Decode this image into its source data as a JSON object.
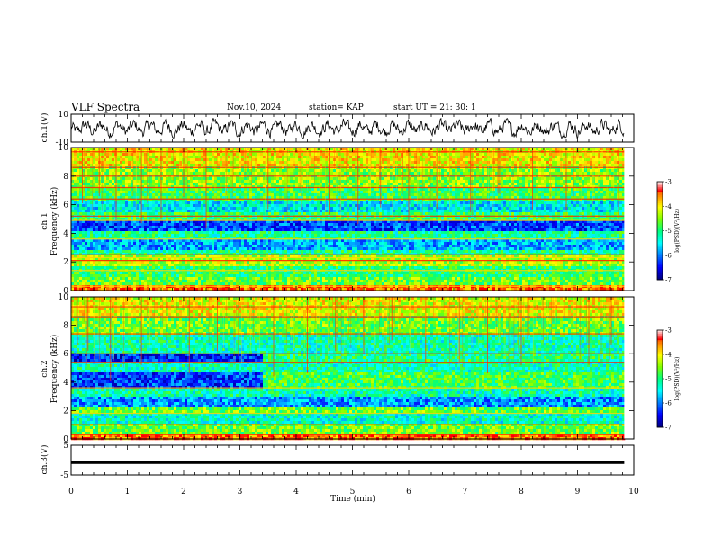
{
  "header": {
    "title": "VLF Spectra",
    "date": "Nov.10, 2024",
    "station": "station= KAP",
    "start": "start  UT =   21: 30: 1"
  },
  "chart_data": [
    {
      "type": "line",
      "name": "ch1-waveform",
      "ylabel": "ch.1(V)",
      "ylim": [
        -10,
        10
      ],
      "yticks": [
        "10",
        "-10"
      ],
      "xlim": [
        0,
        10
      ],
      "data_end_min": 9.83,
      "description_trace": "noisy waveform around 0 V with amplitude about ±6 V",
      "color": "#000000"
    },
    {
      "type": "heatmap",
      "name": "ch1-spectrogram",
      "ylabel_line1": "ch.1",
      "ylabel_line2": "Frequency (kHz)",
      "ylim": [
        0,
        10
      ],
      "yticks": [
        "0",
        "2",
        "4",
        "6",
        "8",
        "10"
      ],
      "xlim": [
        0,
        10
      ],
      "data_end_min": 9.83,
      "bands": [
        {
          "f0": 0.0,
          "f1": 0.3,
          "level": -3.4
        },
        {
          "f0": 0.3,
          "f1": 1.0,
          "level": -4.6
        },
        {
          "f0": 1.0,
          "f1": 1.7,
          "level": -4.9
        },
        {
          "f0": 1.7,
          "f1": 2.4,
          "level": -4.3
        },
        {
          "f0": 2.4,
          "f1": 2.9,
          "level": -5.1
        },
        {
          "f0": 2.9,
          "f1": 3.6,
          "level": -5.8
        },
        {
          "f0": 3.6,
          "f1": 4.2,
          "level": -5.1
        },
        {
          "f0": 4.2,
          "f1": 4.9,
          "level": -6.2
        },
        {
          "f0": 4.9,
          "f1": 5.5,
          "level": -4.9
        },
        {
          "f0": 5.5,
          "f1": 6.3,
          "level": -5.5
        },
        {
          "f0": 6.3,
          "f1": 7.2,
          "level": -4.8
        },
        {
          "f0": 7.2,
          "f1": 8.6,
          "level": -4.5
        },
        {
          "f0": 8.6,
          "f1": 10.0,
          "level": -4.0
        }
      ],
      "lines_khz": [
        0.3,
        1.4,
        2.1,
        2.3,
        2.5,
        3.6,
        4.9,
        5.2,
        6.4,
        7.2,
        8.0,
        8.6,
        9.7
      ],
      "spikes_min": [
        0.2,
        0.5,
        0.8,
        1.25,
        1.6,
        2.0,
        2.4,
        3.5,
        4.1,
        4.6,
        5.1,
        5.5,
        6.0,
        6.5,
        7.1,
        7.6,
        8.2,
        8.8,
        9.4
      ]
    },
    {
      "type": "heatmap",
      "name": "ch2-spectrogram",
      "ylabel_line1": "ch.2",
      "ylabel_line2": "Frequency (kHz)",
      "ylim": [
        0,
        10
      ],
      "yticks": [
        "0",
        "2",
        "4",
        "6",
        "8",
        "10"
      ],
      "xlim": [
        0,
        10
      ],
      "data_end_min": 9.83,
      "bands": [
        {
          "f0": 0.0,
          "f1": 0.3,
          "level": -3.4
        },
        {
          "f0": 0.3,
          "f1": 1.0,
          "level": -4.6
        },
        {
          "f0": 1.0,
          "f1": 1.8,
          "level": -5.3
        },
        {
          "f0": 1.8,
          "f1": 2.3,
          "level": -4.6
        },
        {
          "f0": 2.3,
          "f1": 3.0,
          "level": -5.9
        },
        {
          "f0": 3.0,
          "f1": 3.6,
          "level": -5.2
        },
        {
          "f0": 3.6,
          "f1": 4.6,
          "level": -6.3,
          "level_after": -4.8,
          "switch_min": 3.4
        },
        {
          "f0": 4.6,
          "f1": 5.4,
          "level": -5.2
        },
        {
          "f0": 5.4,
          "f1": 6.0,
          "level": -6.4,
          "level_after": -5.0,
          "switch_min": 3.4
        },
        {
          "f0": 6.0,
          "f1": 7.4,
          "level": -5.2
        },
        {
          "f0": 7.4,
          "f1": 8.6,
          "level": -4.6
        },
        {
          "f0": 8.6,
          "f1": 10.0,
          "level": -4.1
        }
      ],
      "lines_khz": [
        0.3,
        1.0,
        1.8,
        3.6,
        5.4,
        6.0,
        7.4,
        8.6,
        9.3
      ],
      "spikes_min": [
        0.3,
        0.7,
        1.25,
        1.7,
        2.1,
        2.6,
        3.6,
        4.2,
        4.7,
        5.2,
        5.7,
        6.3,
        6.9,
        7.4,
        8.0,
        8.6,
        9.2,
        9.6
      ]
    },
    {
      "type": "line",
      "name": "ch3-waveform",
      "ylabel": "ch.3(V)",
      "ylim": [
        -5,
        5
      ],
      "yticks": [
        "5",
        "-5"
      ],
      "xlim": [
        0,
        10
      ],
      "data_end_min": 9.83,
      "trace_low": -1.3,
      "trace_high": -0.3,
      "color": "#000000"
    }
  ],
  "xaxis": {
    "label": "Time  (min)",
    "ticks": [
      "0",
      "1",
      "2",
      "3",
      "4",
      "5",
      "6",
      "7",
      "8",
      "9",
      "10"
    ]
  },
  "colorbar": {
    "label": "log(PSD)(V²/Hz)",
    "range": [
      -7,
      -3
    ],
    "ticks": [
      "-3",
      "-4",
      "-5",
      "-6",
      "-7"
    ],
    "colormap": [
      "#00007f",
      "#0000ff",
      "#007fff",
      "#00ffff",
      "#00ff7f",
      "#7fff00",
      "#ffff00",
      "#ff7f00",
      "#ff0000",
      "#ffffff"
    ]
  }
}
